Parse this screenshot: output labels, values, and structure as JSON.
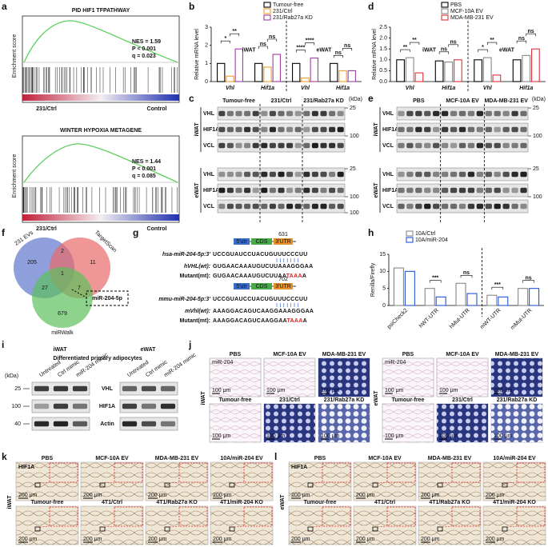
{
  "panels": {
    "a": {
      "letter": "a",
      "y_label": "Enrichment score",
      "plots": [
        {
          "title": "PID HIF1 TFPATHWAY",
          "stats": [
            "NES = 1.59",
            "P < 0.001",
            "q = 0.023"
          ],
          "left_label": "231/Ctrl",
          "right_label": "Control"
        },
        {
          "title": "WINTER  HYPOXIA METAGENE",
          "stats": [
            "NES = 1.44",
            "P < 0.001",
            "q = 0.085"
          ],
          "left_label": "231/Ctrl",
          "right_label": "Control"
        }
      ]
    },
    "b": {
      "letter": "b",
      "chart": {
        "type": "bar",
        "y_label": "Relative mRNA level",
        "categories": [
          "Vhl",
          "Hif1a",
          "Vhl",
          "Hif1a"
        ],
        "groups": [
          "iWAT",
          "eWAT"
        ],
        "series": [
          {
            "name": "Tumour-free",
            "color": "#000000",
            "values": [
              1.0,
              1.0,
              1.0,
              1.0
            ]
          },
          {
            "name": "231/Ctrl",
            "color": "#f0a030",
            "values": [
              0.3,
              0.8,
              0.2,
              0.6
            ]
          },
          {
            "name": "231/Rab27a KD",
            "color": "#9b3fa0",
            "values": [
              1.8,
              1.5,
              1.3,
              0.6
            ]
          }
        ],
        "ylim": [
          0,
          3
        ],
        "yticks": [
          0,
          1,
          2,
          3
        ],
        "significance": [
          [
            "*",
            "**"
          ],
          [
            "ns",
            "ns"
          ],
          [
            "****",
            "****"
          ],
          [
            "ns",
            "ns"
          ]
        ]
      }
    },
    "c": {
      "letter": "c",
      "columns": [
        "Tumour-free",
        "231/Ctrl",
        "231/Rab27a KD"
      ],
      "unit": "(kDa)",
      "blocks": [
        {
          "tissue": "iWAT",
          "rows": [
            "VHL",
            "HIF1A",
            "VCL"
          ],
          "markers": [
            25,
            100
          ]
        },
        {
          "tissue": "eWAT",
          "rows": [
            "VHL",
            "HIF1A",
            "VCL"
          ],
          "markers": [
            25,
            100,
            100
          ]
        }
      ]
    },
    "d": {
      "letter": "d",
      "chart": {
        "type": "bar",
        "y_label": "Relative mRNA level",
        "categories": [
          "Vhl",
          "Hif1a",
          "Vhl",
          "Hif1a"
        ],
        "groups": [
          "iWAT",
          "eWAT"
        ],
        "series": [
          {
            "name": "PBS",
            "color": "#000000",
            "values": [
              1.0,
              0.95,
              1.0,
              1.0
            ]
          },
          {
            "name": "MCF-10A EV",
            "color": "#888888",
            "values": [
              1.1,
              0.9,
              1.1,
              1.2
            ]
          },
          {
            "name": "MDA-MB-231 EV",
            "color": "#e0303a",
            "values": [
              0.4,
              1.0,
              0.3,
              1.5
            ]
          }
        ],
        "ylim": [
          0,
          2.5
        ],
        "yticks": [
          {
            "value": 0,
            "label": "0.0"
          },
          {
            "value": 0.5,
            "label": "0.5"
          },
          {
            "value": 1,
            "label": "1.0"
          },
          {
            "value": 1.5,
            "label": "1.5"
          },
          {
            "value": 2,
            "label": "2.0"
          },
          {
            "value": 2.5,
            "label": "2.5"
          }
        ],
        "significance": [
          [
            "**",
            "**"
          ],
          [
            "ns",
            "ns"
          ],
          [
            "*",
            "**"
          ],
          [
            "ns",
            "ns"
          ]
        ]
      }
    },
    "e": {
      "letter": "e",
      "columns": [
        "PBS",
        "MCF-10A EV",
        "MDA-MB-231 EV"
      ],
      "unit": "(kDa)",
      "blocks": [
        {
          "tissue": "iWAT",
          "rows": [
            "VHL",
            "HIF1A",
            "VCL"
          ],
          "markers": [
            25,
            100
          ]
        },
        {
          "tissue": "eWAT",
          "rows": [
            "VHL",
            "HIF1A",
            "VCL"
          ],
          "markers": [
            25,
            100
          ]
        }
      ]
    },
    "f": {
      "letter": "f",
      "sets": [
        "231 EVs",
        "TargetScan",
        "miRWalk"
      ],
      "counts": {
        "only_231_evs": 205,
        "evs_targetscan": 2,
        "only_targetscan": 11,
        "all": 1,
        "evs_mirwalk": 27,
        "targetscan_mirwalk": 7,
        "only_mirwalk": 679
      },
      "highlight": "miR-204-5p"
    },
    "g": {
      "letter": "g",
      "regions": [
        "5'utr",
        "CDS",
        "3'UTR"
      ],
      "human": {
        "site": 631,
        "mirna_label": "hsa-miR-204-5p:3'",
        "mirna": "UCCGUAUCCUACUGUUUCCCUU",
        "wt_label": "hVHL(wt):",
        "wt": "GUGAACAAAUGUCUUAAAGGGAA",
        "mt_label": "Mutant(mt):",
        "mt": [
          "GUGAACAAAUGUCUUAA",
          "TAAA",
          "A"
        ]
      },
      "mouse": {
        "site": 702,
        "mirna_label": "mmu-miR-204-5p:3'",
        "mirna": "UCCGUAUCCUACUGUUUCCCUU",
        "wt_label": "mVhl(wt):",
        "wt": "AAAGGACAGUCAAGGAAAGGGAA",
        "mt_label": "Mutant(mt):",
        "mt": [
          "AAAGGACAGUCAAGGAA",
          "TAAA",
          "A"
        ]
      }
    },
    "h": {
      "letter": "h",
      "chart": {
        "type": "bar",
        "y_label": "Renilla/Firefly",
        "categories": [
          "psiCheck2",
          "hWT-UTR",
          "hMut-UTR",
          "mWT-UTR",
          "mMut-UTR"
        ],
        "series": [
          {
            "name": "10A/Ctrl",
            "color": "#888888",
            "values": [
              11,
              5,
              6.5,
              3,
              5
            ]
          },
          {
            "name": "10A/miR-204",
            "color": "#2255dd",
            "values": [
              10,
              2.5,
              3.5,
              2.5,
              5
            ]
          }
        ],
        "ylim": [
          0,
          15
        ],
        "yticks": [
          0,
          5,
          10,
          15
        ],
        "significance": [
          null,
          "***",
          "ns",
          "***",
          "ns"
        ]
      }
    },
    "i": {
      "letter": "i",
      "tissues": [
        "iWAT",
        "eWAT"
      ],
      "subtitle": "Differentiated primary adipocytes",
      "columns": [
        "Untreated",
        "Ctrl mimic",
        "miR-204 mimic"
      ],
      "unit": "(kDa)",
      "rows": [
        "VHL",
        "HIF1A",
        "Actin"
      ],
      "markers": [
        25,
        100,
        40
      ]
    },
    "j": {
      "letter": "j",
      "stain": "miR-204",
      "scale": "100 μm",
      "tissues": [
        "iWAT",
        "eWAT"
      ],
      "top": [
        "PBS",
        "MCF-10A EV",
        "MDA-MB-231 EV"
      ],
      "bottom": [
        "Tumour-free",
        "231/Ctrl",
        "231/Rab27a KD"
      ]
    },
    "k": {
      "letter": "k",
      "tissue": "iWAT",
      "stain": "HIF1A",
      "scale": "200 μm",
      "top": [
        "PBS",
        "MCF-10A EV",
        "MDA-MB-231 EV",
        "10A/miR-204 EV"
      ],
      "bottom": [
        "Tumour-free",
        "4T1/Ctrl",
        "4T1/Rab27a KO",
        "4T1/miR-204 KO"
      ]
    },
    "l": {
      "letter": "l",
      "tissue": "eWAT",
      "stain": "HIF1A",
      "scale": "200 μm",
      "top": [
        "PBS",
        "MCF-10A EV",
        "MDA-MB-231 EV",
        "10A/miR-204 EV"
      ],
      "bottom": [
        "Tumour-free",
        "4T1/Ctrl",
        "4T1/Rab27a KO",
        "4T1/miR-204 KO"
      ]
    }
  }
}
